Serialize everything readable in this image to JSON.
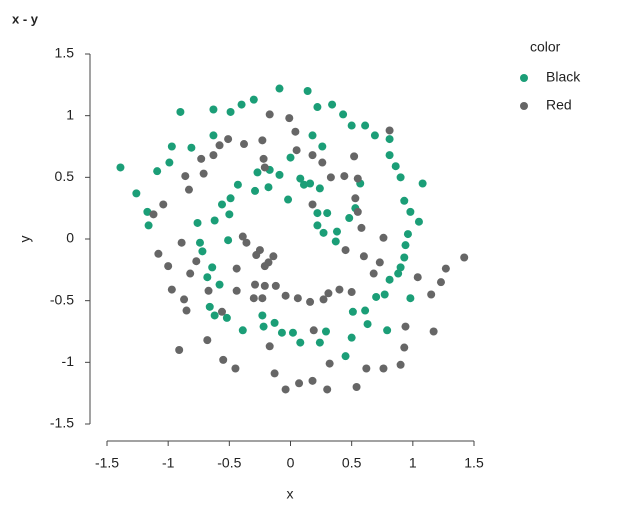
{
  "chart_data": {
    "type": "scatter",
    "title": "x - y",
    "x_label": "x",
    "y_label": "y",
    "legend_title": "color",
    "legend_position": "right",
    "xlim": [
      -1.5,
      1.5
    ],
    "ylim": [
      -1.5,
      1.5
    ],
    "xticks": [
      -1.5,
      -1,
      -0.5,
      0,
      0.5,
      1,
      1.5
    ],
    "yticks": [
      -1.5,
      -1,
      -0.5,
      0,
      0.5,
      1,
      1.5
    ],
    "series": [
      {
        "name": "Black",
        "color": "#1b9e77",
        "x": [
          -1.39,
          -1.26,
          -1.17,
          -1.16,
          -1.09,
          -0.99,
          -0.97,
          -0.9,
          -0.81,
          -0.63,
          -0.63,
          -0.49,
          -0.4,
          -0.3,
          -0.09,
          0.14,
          0.22,
          0.34,
          0.43,
          0.5,
          0.61,
          0.69,
          0.81,
          0.81,
          0.86,
          0.9,
          1.08,
          0.93,
          0.98,
          1.05,
          0.96,
          0.94,
          0.93,
          0.9,
          0.88,
          0.98,
          0.81,
          0.77,
          0.7,
          0.79,
          0.63,
          0.61,
          0.51,
          0.5,
          0.45,
          0.29,
          0.24,
          0.08,
          0.02,
          -0.07,
          -0.13,
          -0.22,
          -0.23,
          -0.39,
          -0.52,
          -0.62,
          -0.66,
          -0.58,
          -0.68,
          -0.64,
          -0.72,
          -0.74,
          -0.76,
          -0.62,
          -0.56,
          -0.49,
          -0.5,
          -0.43,
          -0.29,
          -0.27,
          -0.18,
          -0.17,
          -0.09,
          -0.02,
          0.0,
          0.08,
          0.11,
          0.18,
          0.26,
          0.16,
          0.24,
          0.22,
          0.3,
          0.38,
          0.37,
          0.27,
          0.22,
          0.48,
          0.53,
          0.57,
          -0.51
        ],
        "values": [
          0.58,
          0.37,
          0.22,
          0.11,
          0.55,
          0.62,
          0.75,
          1.03,
          0.74,
          1.05,
          0.84,
          1.03,
          1.09,
          1.13,
          1.22,
          1.2,
          1.07,
          1.09,
          1.01,
          0.92,
          0.92,
          0.84,
          0.81,
          0.68,
          0.59,
          0.5,
          0.45,
          0.31,
          0.22,
          0.14,
          0.04,
          -0.05,
          -0.15,
          -0.23,
          -0.28,
          -0.48,
          -0.33,
          -0.45,
          -0.47,
          -0.74,
          -0.69,
          -0.58,
          -0.59,
          -0.8,
          -0.95,
          -0.75,
          -0.84,
          -0.84,
          -0.76,
          -0.76,
          -0.68,
          -0.71,
          -0.62,
          -0.74,
          -0.64,
          -0.62,
          -0.55,
          -0.37,
          -0.31,
          -0.23,
          -0.1,
          -0.03,
          0.13,
          0.15,
          0.28,
          0.33,
          0.2,
          0.44,
          0.39,
          0.54,
          0.42,
          0.56,
          0.52,
          0.32,
          0.66,
          0.49,
          0.44,
          0.84,
          0.75,
          0.45,
          0.41,
          0.21,
          0.21,
          0.06,
          -0.02,
          0.05,
          0.11,
          0.17,
          0.25,
          0.45,
          -0.01
        ]
      },
      {
        "name": "Red",
        "color": "#666666",
        "x": [
          -1.12,
          -1.04,
          -1.08,
          -1.0,
          -0.97,
          -0.89,
          -0.91,
          -0.85,
          -0.87,
          -0.82,
          -0.77,
          -0.86,
          -0.83,
          -0.73,
          -0.71,
          -0.63,
          -0.58,
          -0.51,
          -0.23,
          -0.17,
          -0.01,
          0.04,
          0.18,
          0.26,
          0.33,
          0.44,
          0.52,
          0.55,
          0.53,
          0.55,
          0.58,
          0.6,
          0.68,
          0.73,
          0.76,
          0.81,
          0.5,
          0.4,
          0.31,
          0.27,
          0.16,
          0.06,
          -0.04,
          -0.12,
          -0.21,
          -0.23,
          -0.3,
          -0.29,
          -0.21,
          -0.28,
          -0.25,
          -0.36,
          -0.39,
          -0.18,
          -0.14,
          -0.44,
          -0.44,
          -0.67,
          -0.56,
          -0.55,
          -0.45,
          -0.68,
          -0.17,
          -0.13,
          -0.04,
          0.07,
          0.18,
          0.3,
          0.32,
          0.19,
          0.54,
          0.62,
          0.76,
          0.9,
          0.93,
          0.94,
          1.15,
          1.17,
          1.23,
          1.27,
          1.42,
          1.04,
          0.45,
          0.18,
          -0.38,
          -0.22,
          -0.21,
          0.05
        ],
        "values": [
          0.2,
          0.28,
          -0.12,
          -0.22,
          -0.41,
          -0.03,
          -0.9,
          -0.58,
          -0.49,
          -0.28,
          -0.18,
          0.51,
          0.4,
          0.65,
          0.53,
          0.68,
          0.76,
          0.81,
          0.8,
          1.01,
          0.98,
          0.87,
          0.68,
          0.62,
          0.5,
          0.51,
          0.67,
          0.49,
          0.33,
          0.22,
          0.09,
          -0.14,
          -0.28,
          -0.19,
          0.01,
          0.88,
          -0.43,
          -0.41,
          -0.44,
          -0.49,
          -0.51,
          -0.48,
          -0.46,
          -0.38,
          -0.38,
          -0.48,
          -0.48,
          -0.37,
          -0.22,
          -0.13,
          -0.09,
          -0.03,
          0.02,
          -0.19,
          -0.14,
          -0.24,
          -0.42,
          -0.42,
          -0.59,
          -0.98,
          -1.05,
          -0.82,
          -0.87,
          -1.09,
          -1.22,
          -1.17,
          -1.15,
          -1.22,
          -1.01,
          -0.74,
          -1.2,
          -1.05,
          -1.05,
          -1.02,
          -0.88,
          -0.71,
          -0.45,
          -0.75,
          -0.35,
          -0.24,
          -0.15,
          -0.31,
          -0.09,
          0.28,
          0.77,
          0.65,
          0.58,
          0.72
        ]
      }
    ]
  }
}
